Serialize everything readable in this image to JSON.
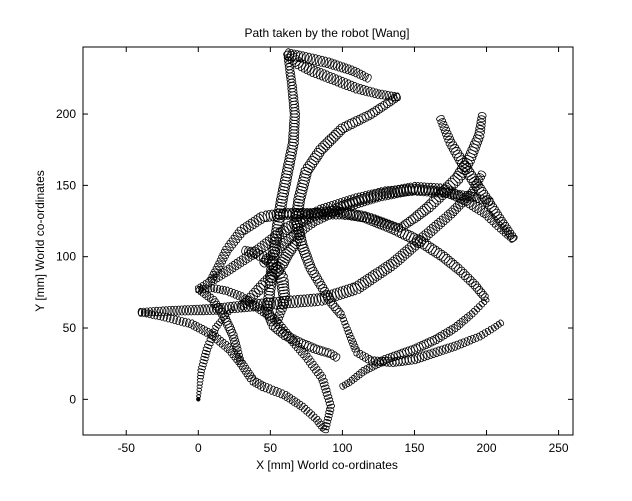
{
  "chart_data": {
    "type": "scatter",
    "title": "Path taken by the robot [Wang]",
    "xlabel": "X [mm] World co-ordinates",
    "ylabel": "Y [mm] World co-ordinates",
    "xlim": [
      -80,
      260
    ],
    "ylim": [
      -25,
      247
    ],
    "xticks": [
      -50,
      0,
      50,
      100,
      150,
      200,
      250
    ],
    "yticks": [
      0,
      50,
      100,
      150,
      200
    ],
    "xtick_labels": [
      "-50",
      "0",
      "50",
      "100",
      "150",
      "200",
      "250"
    ],
    "ytick_labels": [
      "0",
      "50",
      "100",
      "150",
      "200"
    ],
    "grid": false,
    "marker": "ellipse",
    "color": "#000000",
    "start_point": [
      0,
      0
    ],
    "paths": [
      {
        "points": [
          [
            0,
            0
          ],
          [
            2,
            20
          ],
          [
            6,
            35
          ],
          [
            12,
            50
          ],
          [
            18,
            58
          ],
          [
            26,
            65
          ]
        ],
        "w": [
          1.5,
          6
        ],
        "h": [
          1.5,
          3
        ]
      },
      {
        "points": [
          [
            -40,
            61
          ],
          [
            -25,
            58
          ],
          [
            -5,
            53
          ],
          [
            10,
            45
          ],
          [
            22,
            35
          ],
          [
            30,
            25
          ],
          [
            38,
            13
          ],
          [
            45,
            9
          ],
          [
            60,
            3
          ],
          [
            72,
            -5
          ],
          [
            82,
            -14
          ],
          [
            88,
            -22
          ]
        ],
        "w": [
          5,
          7
        ],
        "h": [
          3,
          4
        ]
      },
      {
        "points": [
          [
            88,
            -22
          ],
          [
            92,
            -5
          ],
          [
            86,
            15
          ],
          [
            75,
            30
          ],
          [
            62,
            45
          ],
          [
            52,
            57
          ],
          [
            40,
            65
          ],
          [
            30,
            72
          ],
          [
            20,
            76
          ],
          [
            10,
            78
          ],
          [
            0,
            77
          ]
        ],
        "w": [
          5,
          7
        ],
        "h": [
          3,
          4
        ]
      },
      {
        "points": [
          [
            0,
            77
          ],
          [
            10,
            70
          ],
          [
            18,
            58
          ],
          [
            24,
            45
          ],
          [
            27,
            35
          ],
          [
            30,
            24
          ]
        ],
        "w": [
          5,
          7
        ],
        "h": [
          3,
          5
        ]
      },
      {
        "points": [
          [
            -40,
            61
          ],
          [
            -20,
            62
          ],
          [
            10,
            63
          ],
          [
            40,
            66
          ],
          [
            60,
            68
          ],
          [
            85,
            70
          ],
          [
            110,
            78
          ],
          [
            135,
            95
          ],
          [
            158,
            115
          ],
          [
            175,
            130
          ],
          [
            190,
            145
          ],
          [
            198,
            160
          ]
        ],
        "w": [
          6,
          10
        ],
        "h": [
          4,
          5
        ]
      },
      {
        "points": [
          [
            0,
            77
          ],
          [
            20,
            90
          ],
          [
            42,
            105
          ],
          [
            62,
            120
          ],
          [
            85,
            132
          ],
          [
            110,
            140
          ],
          [
            130,
            145
          ],
          [
            150,
            147
          ],
          [
            170,
            145
          ],
          [
            190,
            142
          ],
          [
            205,
            138
          ]
        ],
        "w": [
          6,
          10
        ],
        "h": [
          4,
          5
        ]
      },
      {
        "points": [
          [
            45,
            95
          ],
          [
            60,
            110
          ],
          [
            80,
            125
          ],
          [
            100,
            135
          ],
          [
            125,
            143
          ],
          [
            150,
            148
          ],
          [
            170,
            147
          ],
          [
            185,
            140
          ],
          [
            200,
            130
          ],
          [
            210,
            120
          ],
          [
            220,
            111
          ]
        ],
        "w": [
          6,
          10
        ],
        "h": [
          4,
          5
        ]
      },
      {
        "points": [
          [
            168,
            197
          ],
          [
            175,
            180
          ],
          [
            182,
            168
          ],
          [
            190,
            155
          ],
          [
            200,
            140
          ],
          [
            210,
            125
          ],
          [
            220,
            111
          ]
        ],
        "w": [
          6,
          9
        ],
        "h": [
          4,
          6
        ]
      },
      {
        "points": [
          [
            197,
            199
          ],
          [
            195,
            185
          ],
          [
            188,
            168
          ],
          [
            180,
            155
          ],
          [
            170,
            145
          ],
          [
            160,
            135
          ],
          [
            150,
            127
          ],
          [
            140,
            120
          ]
        ],
        "w": [
          6,
          10
        ],
        "h": [
          5,
          6
        ]
      },
      {
        "points": [
          [
            140,
            120
          ],
          [
            120,
            127
          ],
          [
            100,
            130
          ],
          [
            80,
            130
          ],
          [
            60,
            130
          ],
          [
            45,
            128
          ],
          [
            30,
            118
          ],
          [
            20,
            105
          ],
          [
            14,
            93
          ],
          [
            8,
            82
          ]
        ],
        "w": [
          6,
          9
        ],
        "h": [
          4,
          5
        ]
      },
      {
        "points": [
          [
            138,
            212
          ],
          [
            125,
            214
          ],
          [
            110,
            218
          ],
          [
            95,
            224
          ],
          [
            80,
            230
          ],
          [
            70,
            235
          ],
          [
            62,
            242
          ],
          [
            72,
            240
          ],
          [
            90,
            236
          ],
          [
            108,
            230
          ],
          [
            120,
            224
          ]
        ],
        "w": [
          6,
          9
        ],
        "h": [
          4,
          5
        ]
      },
      {
        "points": [
          [
            62,
            242
          ],
          [
            65,
            220
          ],
          [
            67,
            200
          ],
          [
            66,
            180
          ],
          [
            62,
            160
          ],
          [
            58,
            140
          ],
          [
            55,
            120
          ],
          [
            52,
            100
          ],
          [
            50,
            80
          ],
          [
            48,
            62
          ],
          [
            52,
            52
          ],
          [
            60,
            45
          ],
          [
            70,
            40
          ],
          [
            82,
            35
          ],
          [
            92,
            32
          ],
          [
            98,
            28
          ]
        ],
        "w": [
          6,
          9
        ],
        "h": [
          5,
          6
        ]
      },
      {
        "points": [
          [
            138,
            212
          ],
          [
            120,
            200
          ],
          [
            100,
            190
          ],
          [
            85,
            175
          ],
          [
            75,
            160
          ],
          [
            70,
            140
          ],
          [
            68,
            125
          ],
          [
            72,
            108
          ],
          [
            78,
            92
          ],
          [
            85,
            80
          ],
          [
            92,
            68
          ],
          [
            100,
            58
          ]
        ],
        "w": [
          6,
          9
        ],
        "h": [
          5,
          6
        ]
      },
      {
        "points": [
          [
            58,
            130
          ],
          [
            75,
            130
          ],
          [
            95,
            132
          ],
          [
            115,
            128
          ],
          [
            135,
            120
          ],
          [
            155,
            110
          ],
          [
            170,
            100
          ],
          [
            182,
            90
          ],
          [
            192,
            80
          ],
          [
            200,
            70
          ]
        ],
        "w": [
          6,
          9
        ],
        "h": [
          5,
          6
        ]
      },
      {
        "points": [
          [
            100,
            58
          ],
          [
            105,
            45
          ],
          [
            110,
            33
          ],
          [
            120,
            27
          ],
          [
            135,
            26
          ],
          [
            150,
            28
          ],
          [
            165,
            33
          ],
          [
            180,
            38
          ],
          [
            195,
            44
          ],
          [
            205,
            50
          ],
          [
            212,
            55
          ]
        ],
        "w": [
          4,
          7
        ],
        "h": [
          3,
          5
        ]
      },
      {
        "points": [
          [
            200,
            70
          ],
          [
            190,
            60
          ],
          [
            178,
            50
          ],
          [
            165,
            42
          ],
          [
            150,
            35
          ],
          [
            130,
            28
          ],
          [
            115,
            20
          ],
          [
            105,
            12
          ],
          [
            98,
            8
          ]
        ],
        "w": [
          4,
          7
        ],
        "h": [
          3,
          5
        ]
      },
      {
        "points": [
          [
            30,
            65
          ],
          [
            40,
            75
          ],
          [
            50,
            85
          ],
          [
            58,
            95
          ],
          [
            62,
            102
          ],
          [
            68,
            110
          ],
          [
            72,
            118
          ]
        ],
        "w": [
          6,
          10
        ],
        "h": [
          4,
          6
        ]
      },
      {
        "points": [
          [
            55,
            55
          ],
          [
            60,
            70
          ],
          [
            58,
            85
          ],
          [
            52,
            95
          ],
          [
            45,
            100
          ],
          [
            38,
            103
          ],
          [
            30,
            105
          ]
        ],
        "w": [
          6,
          10
        ],
        "h": [
          4,
          6
        ]
      }
    ]
  }
}
